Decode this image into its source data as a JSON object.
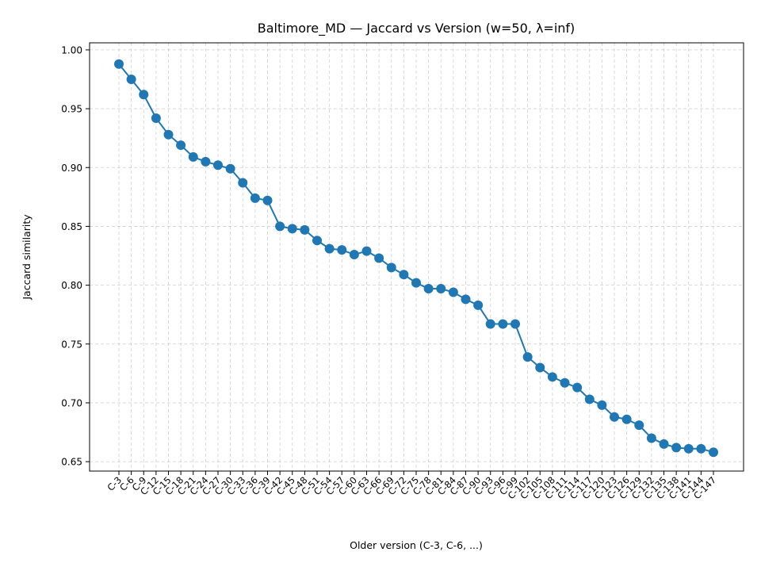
{
  "chart_data": {
    "type": "line",
    "title": "Baltimore_MD — Jaccard vs Version (w=50, λ=inf)",
    "xlabel": "Older version (C-3, C-6, ...)",
    "ylabel": "Jaccard similarity",
    "categories": [
      "C-3",
      "C-6",
      "C-9",
      "C-12",
      "C-15",
      "C-18",
      "C-21",
      "C-24",
      "C-27",
      "C-30",
      "C-33",
      "C-36",
      "C-39",
      "C-42",
      "C-45",
      "C-48",
      "C-51",
      "C-54",
      "C-57",
      "C-60",
      "C-63",
      "C-66",
      "C-69",
      "C-72",
      "C-75",
      "C-78",
      "C-81",
      "C-84",
      "C-87",
      "C-90",
      "C-93",
      "C-96",
      "C-99",
      "C-102",
      "C-105",
      "C-108",
      "C-111",
      "C-114",
      "C-117",
      "C-120",
      "C-123",
      "C-126",
      "C-129",
      "C-132",
      "C-135",
      "C-138",
      "C-141",
      "C-144",
      "C-147"
    ],
    "values": [
      0.988,
      0.975,
      0.962,
      0.942,
      0.928,
      0.919,
      0.909,
      0.905,
      0.902,
      0.899,
      0.887,
      0.874,
      0.872,
      0.85,
      0.848,
      0.847,
      0.838,
      0.831,
      0.83,
      0.826,
      0.829,
      0.823,
      0.815,
      0.809,
      0.802,
      0.797,
      0.797,
      0.794,
      0.788,
      0.783,
      0.767,
      0.767,
      0.767,
      0.739,
      0.73,
      0.722,
      0.717,
      0.713,
      0.703,
      0.698,
      0.688,
      0.686,
      0.681,
      0.67,
      0.665,
      0.662,
      0.661,
      0.661,
      0.658
    ],
    "yticks": [
      0.65,
      0.7,
      0.75,
      0.8,
      0.85,
      0.9,
      0.95,
      1.0
    ],
    "ytick_labels": [
      "0.65",
      "0.70",
      "0.75",
      "0.80",
      "0.85",
      "0.90",
      "0.95",
      "1.00"
    ],
    "ylim": [
      0.642,
      1.006
    ],
    "grid": true,
    "color": "#1f77b4"
  }
}
